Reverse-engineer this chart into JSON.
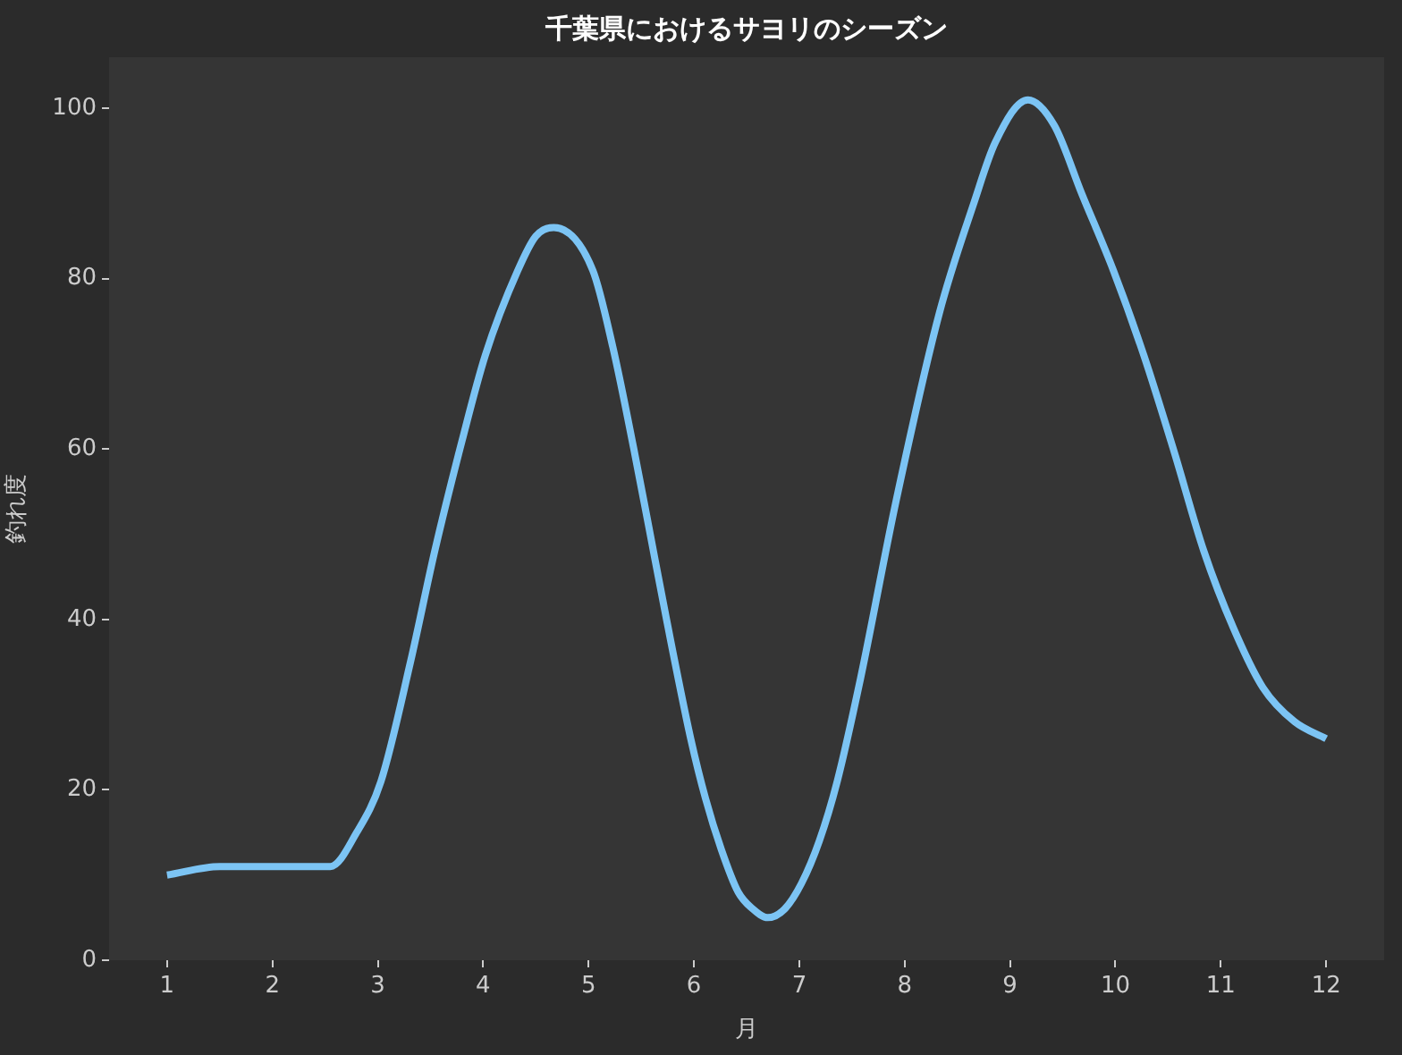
{
  "chart_data": {
    "type": "line",
    "title": "千葉県におけるサヨリのシーズン",
    "xlabel": "月",
    "ylabel": "釣れ度",
    "x": [
      1.0,
      1.5,
      2.0,
      2.55,
      2.8,
      3.03,
      3.31,
      3.54,
      3.8,
      4.02,
      4.33,
      4.5,
      4.67,
      5.04,
      5.23,
      5.43,
      5.57,
      5.74,
      5.97,
      6.11,
      6.26,
      6.42,
      6.56,
      6.7,
      6.86,
      7.02,
      7.19,
      7.36,
      7.58,
      7.92,
      8.33,
      8.66,
      8.86,
      9.17,
      9.42,
      9.68,
      9.98,
      10.27,
      10.55,
      10.84,
      11.12,
      11.4,
      11.7,
      12.0
    ],
    "series": [
      {
        "color": "#7cc4f4",
        "values": [
          10,
          11,
          11,
          11,
          15,
          21,
          35,
          48,
          61,
          71,
          81,
          85,
          86,
          81,
          72,
          60,
          51,
          40,
          26,
          19,
          13,
          8,
          6,
          5,
          6,
          9,
          14,
          21,
          33,
          54,
          76,
          89,
          96,
          101,
          98,
          90,
          81,
          71,
          60,
          48,
          39,
          32,
          28,
          26
        ]
      }
    ],
    "xlim": [
      0.45,
      12.55
    ],
    "ylim": [
      0,
      106
    ],
    "xticks": [
      1,
      2,
      3,
      4,
      5,
      6,
      7,
      8,
      9,
      10,
      11,
      12
    ],
    "yticks": [
      0,
      20,
      40,
      60,
      80,
      100
    ],
    "grid": false,
    "legend": false,
    "marker": "none",
    "line_style": "solid"
  }
}
